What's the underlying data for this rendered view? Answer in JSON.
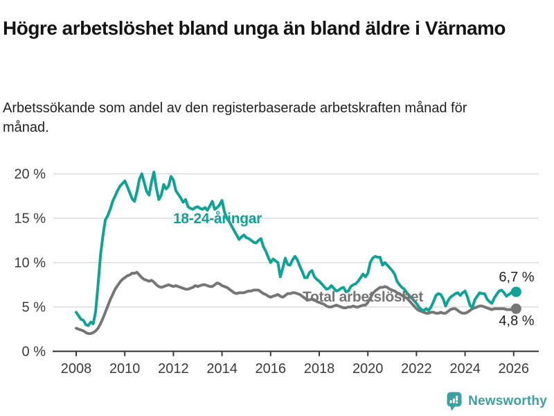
{
  "header": {
    "title": "Högre arbetslöshet bland unga än bland äldre i Värnamo",
    "subtitle": "Arbetssökande som andel av den registerbaserade arbetskraften månad för månad."
  },
  "chart_data": {
    "type": "line",
    "title": "Högre arbetslöshet bland unga än bland äldre i Värnamo",
    "subtitle": "Arbetssökande som andel av den registerbaserade arbetskraften månad för månad.",
    "grid": "horizontal",
    "legend": "inline-labels",
    "x_axis": {
      "tick_years": [
        2008,
        2010,
        2012,
        2014,
        2016,
        2018,
        2020,
        2022,
        2024,
        2026
      ],
      "tick_labels": [
        "2008",
        "2010",
        "2012",
        "2014",
        "2016",
        "2018",
        "2020",
        "2022",
        "2024",
        "2026"
      ]
    },
    "y_axis": {
      "tick_values": [
        0,
        5,
        10,
        15,
        20
      ],
      "tick_labels": [
        "0 %",
        "5 %",
        "10 %",
        "15 %",
        "20 %"
      ],
      "ylim": [
        0,
        21
      ]
    },
    "x_start": 2008.0,
    "x_step_years": 0.1,
    "series": [
      {
        "name": "18-24-åringar",
        "color": "#10a295",
        "end_label": "6,7 %",
        "end_value": 6.7,
        "values": [
          4.4,
          4.0,
          3.6,
          3.5,
          3.0,
          2.9,
          3.3,
          3.1,
          4.5,
          7.5,
          10.8,
          13.0,
          14.8,
          15.3,
          16.0,
          16.9,
          17.5,
          18.1,
          18.6,
          18.9,
          19.2,
          18.6,
          17.9,
          17.2,
          16.9,
          18.0,
          19.4,
          20.0,
          19.0,
          18.0,
          17.6,
          19.1,
          20.2,
          18.4,
          17.1,
          17.6,
          18.8,
          18.3,
          18.6,
          19.7,
          19.3,
          18.1,
          17.7,
          17.3,
          16.8,
          17.1,
          16.3,
          16.1,
          16.0,
          16.2,
          16.3,
          16.1,
          16.0,
          16.2,
          15.9,
          16.4,
          16.9,
          16.0,
          16.2,
          16.5,
          17.0,
          15.7,
          15.0,
          14.6,
          14.1,
          13.6,
          13.1,
          12.6,
          12.9,
          13.1,
          12.8,
          12.7,
          12.5,
          12.3,
          12.2,
          12.5,
          12.7,
          11.8,
          11.3,
          10.6,
          10.0,
          10.4,
          10.2,
          10.0,
          8.4,
          9.4,
          10.5,
          9.8,
          9.7,
          10.3,
          10.7,
          10.3,
          9.6,
          9.0,
          8.3,
          8.3,
          8.9,
          9.1,
          8.4,
          8.1,
          7.9,
          7.6,
          7.3,
          7.0,
          7.1,
          7.4,
          7.1,
          6.8,
          6.9,
          7.1,
          7.2,
          6.7,
          6.8,
          7.3,
          7.5,
          7.6,
          7.9,
          8.3,
          8.7,
          8.4,
          8.8,
          10.0,
          10.5,
          10.7,
          10.6,
          10.6,
          9.7,
          10.0,
          9.7,
          9.4,
          9.1,
          8.7,
          7.9,
          7.5,
          7.2,
          7.0,
          6.6,
          6.3,
          6.0,
          5.7,
          5.4,
          5.0,
          4.7,
          4.6,
          4.8,
          4.6,
          5.0,
          5.6,
          6.3,
          6.5,
          6.4,
          5.9,
          5.1,
          5.7,
          6.1,
          6.3,
          6.5,
          6.6,
          6.3,
          6.6,
          6.8,
          6.1,
          5.2,
          4.9,
          5.8,
          6.2,
          6.6,
          6.5,
          6.5,
          5.9,
          5.6,
          5.4,
          6.0,
          6.4,
          6.8,
          6.9,
          6.6,
          6.2,
          6.4,
          6.6,
          6.8,
          6.7
        ]
      },
      {
        "name": "Total arbetslöshet",
        "color": "#757575",
        "end_label": "4,8 %",
        "end_value": 4.8,
        "values": [
          2.6,
          2.5,
          2.4,
          2.3,
          2.1,
          2.0,
          2.0,
          2.1,
          2.3,
          2.6,
          3.1,
          3.7,
          4.4,
          5.1,
          5.8,
          6.4,
          7.0,
          7.4,
          7.8,
          8.1,
          8.3,
          8.5,
          8.6,
          8.8,
          8.8,
          8.9,
          8.6,
          8.3,
          8.1,
          8.0,
          7.9,
          8.0,
          7.8,
          7.5,
          7.3,
          7.2,
          7.3,
          7.4,
          7.5,
          7.4,
          7.3,
          7.4,
          7.3,
          7.2,
          7.1,
          7.0,
          7.0,
          7.1,
          7.2,
          7.4,
          7.3,
          7.4,
          7.5,
          7.5,
          7.4,
          7.3,
          7.3,
          7.5,
          7.7,
          7.6,
          7.4,
          7.3,
          7.2,
          7.0,
          6.8,
          6.6,
          6.5,
          6.6,
          6.6,
          6.6,
          6.7,
          6.8,
          6.8,
          6.9,
          6.9,
          6.9,
          6.7,
          6.5,
          6.4,
          6.2,
          6.1,
          6.2,
          6.3,
          6.4,
          6.2,
          6.1,
          6.3,
          6.5,
          6.5,
          6.6,
          6.6,
          6.5,
          6.4,
          6.2,
          6.0,
          5.8,
          5.8,
          5.9,
          5.8,
          5.6,
          5.5,
          5.4,
          5.3,
          5.1,
          5.0,
          5.0,
          5.1,
          5.2,
          5.1,
          5.0,
          4.9,
          4.9,
          5.0,
          5.0,
          5.1,
          5.0,
          5.0,
          5.1,
          5.2,
          5.2,
          5.5,
          6.0,
          6.5,
          6.8,
          7.0,
          7.2,
          7.2,
          7.3,
          7.2,
          7.0,
          6.9,
          6.8,
          6.6,
          6.5,
          6.3,
          6.1,
          6.0,
          5.7,
          5.4,
          5.1,
          4.8,
          4.6,
          4.5,
          4.4,
          4.3,
          4.3,
          4.4,
          4.4,
          4.3,
          4.3,
          4.4,
          4.3,
          4.3,
          4.5,
          4.7,
          4.8,
          4.8,
          4.6,
          4.4,
          4.3,
          4.3,
          4.4,
          4.6,
          4.8,
          4.9,
          5.0,
          5.1,
          5.1,
          5.0,
          4.9,
          4.8,
          4.7,
          4.8,
          4.8,
          4.8,
          4.8,
          4.8,
          4.7,
          4.7,
          4.7,
          4.8,
          4.8
        ]
      }
    ],
    "colors": {
      "grid": "#d9d9d9",
      "axis": "#3a3a3a",
      "tick_text": "#3a3a3a"
    }
  },
  "footer": {
    "brand": "Newsworthy",
    "brand_color": "#3ba1a1"
  }
}
